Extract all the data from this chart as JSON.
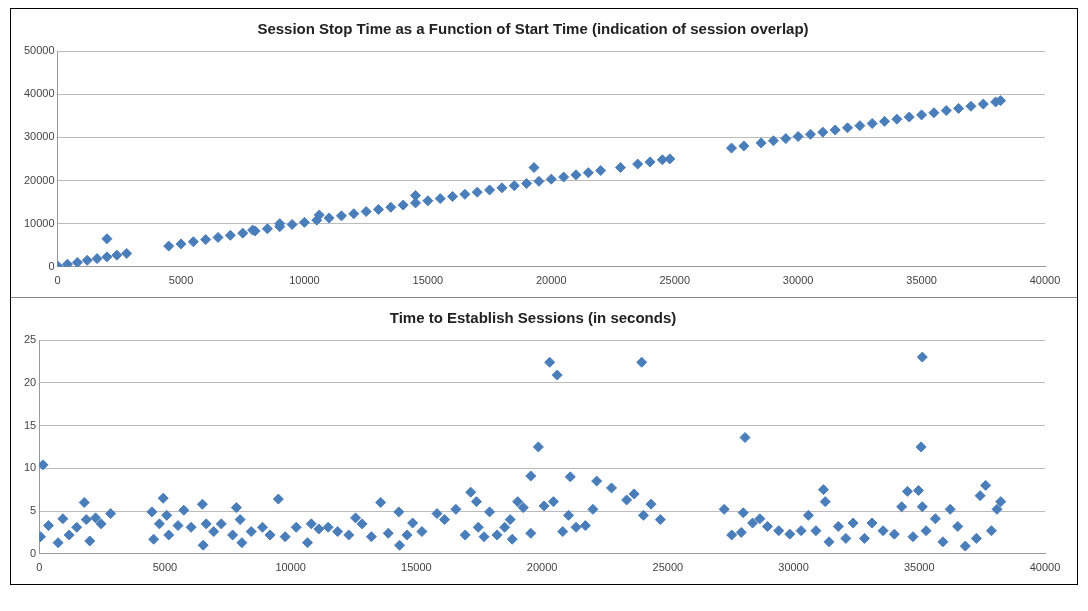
{
  "chart_data": [
    {
      "type": "scatter",
      "title": "Session Stop Time as a Function of Start Time (indication of session overlap)",
      "marker": "diamond",
      "grid": "y",
      "xlim": [
        0,
        40000
      ],
      "xticks": [
        0,
        5000,
        10000,
        15000,
        20000,
        25000,
        30000,
        35000,
        40000
      ],
      "ylim": [
        0,
        50000
      ],
      "yticks": [
        0,
        10000,
        20000,
        30000,
        40000,
        50000
      ],
      "series": [
        {
          "color": "#4a7ebb",
          "x": [
            0,
            400,
            800,
            1200,
            1600,
            2000,
            2000,
            2400,
            2800,
            4500,
            5000,
            5500,
            6000,
            6500,
            7000,
            7500,
            7900,
            8000,
            8500,
            9000,
            9000,
            9500,
            10000,
            10500,
            10600,
            11000,
            11500,
            12000,
            12500,
            13000,
            13500,
            14000,
            14500,
            14500,
            15000,
            15500,
            16000,
            16500,
            17000,
            17500,
            18000,
            18500,
            19000,
            19300,
            19500,
            20000,
            20500,
            21000,
            21500,
            22000,
            22800,
            23500,
            24000,
            24500,
            24800,
            27300,
            27800,
            28500,
            29000,
            29500,
            30000,
            30500,
            31000,
            31500,
            32000,
            32500,
            33000,
            33500,
            34000,
            34500,
            35000,
            35500,
            36000,
            36500,
            37000,
            37500,
            38000,
            38200
          ],
          "values": [
            200,
            600,
            1000,
            1500,
            1900,
            2300,
            6500,
            2700,
            3100,
            4800,
            5300,
            5800,
            6300,
            6800,
            7300,
            7800,
            8500,
            8300,
            8800,
            9300,
            10000,
            9800,
            10300,
            10800,
            12000,
            11300,
            11800,
            12300,
            12800,
            13300,
            13800,
            14300,
            14800,
            16500,
            15300,
            15800,
            16300,
            16800,
            17300,
            17800,
            18300,
            18800,
            19300,
            23000,
            19800,
            20300,
            20800,
            21300,
            21800,
            22300,
            23000,
            23800,
            24300,
            24800,
            25000,
            27500,
            28000,
            28700,
            29200,
            29700,
            30200,
            30700,
            31200,
            31700,
            32200,
            32700,
            33200,
            33700,
            34200,
            34700,
            35200,
            35700,
            36200,
            36700,
            37200,
            37700,
            38200,
            38500
          ]
        }
      ]
    },
    {
      "type": "scatter",
      "title": "Time to Establish Sessions (in seconds)",
      "marker": "diamond",
      "grid": "y",
      "xlim": [
        0,
        40000
      ],
      "xticks": [
        0,
        5000,
        10000,
        15000,
        20000,
        25000,
        30000,
        35000,
        40000
      ],
      "ylim": [
        0,
        25
      ],
      "yticks": [
        0,
        5,
        10,
        15,
        20,
        25
      ],
      "series": [
        {
          "color": "#4a7ebb",
          "x": [
            150,
            50,
            370,
            750,
            940,
            1190,
            1490,
            1790,
            1870,
            2010,
            2240,
            2460,
            2840,
            4480,
            4550,
            4780,
            4930,
            5070,
            5150,
            5520,
            5750,
            6040,
            6490,
            6520,
            6640,
            6940,
            7240,
            7690,
            7840,
            7990,
            8060,
            8430,
            8880,
            9180,
            9510,
            9780,
            10220,
            10670,
            10820,
            11120,
            11490,
            11870,
            12310,
            12580,
            12840,
            13210,
            13580,
            13880,
            14300,
            14330,
            14630,
            14850,
            15220,
            15820,
            16120,
            16570,
            16940,
            17160,
            17390,
            17460,
            17690,
            17910,
            18210,
            18510,
            18730,
            18810,
            19030,
            19250,
            19550,
            19550,
            19850,
            20080,
            20300,
            20450,
            20600,
            20820,
            21050,
            21120,
            21350,
            21720,
            22020,
            22170,
            22760,
            23360,
            23660,
            23960,
            24030,
            24330,
            24700,
            27240,
            27540,
            28000,
            28070,
            27920,
            28370,
            28660,
            28960,
            29410,
            29850,
            30300,
            30590,
            30890,
            31190,
            31260,
            31410,
            31780,
            32080,
            32370,
            32820,
            33120,
            33560,
            34010,
            34300,
            34530,
            34750,
            34970,
            35120,
            35070,
            35120,
            35270,
            35640,
            35940,
            36230,
            36530,
            36830,
            37270,
            37420,
            37640,
            37870,
            38090,
            38240
          ],
          "values": [
            10.4,
            2.0,
            3.3,
            1.3,
            4.1,
            2.2,
            3.1,
            6.0,
            4.0,
            1.5,
            4.2,
            3.5,
            4.7,
            4.9,
            1.7,
            3.5,
            6.5,
            4.5,
            2.2,
            3.3,
            5.1,
            3.1,
            5.8,
            1.0,
            3.5,
            2.6,
            3.5,
            2.2,
            5.4,
            4.0,
            1.3,
            2.6,
            3.1,
            2.2,
            6.4,
            2.0,
            3.1,
            1.3,
            3.5,
            2.9,
            3.1,
            2.6,
            2.2,
            4.2,
            3.5,
            2.0,
            6.0,
            2.4,
            4.9,
            1.0,
            2.2,
            3.6,
            2.6,
            4.7,
            4.0,
            5.2,
            2.2,
            7.2,
            6.1,
            3.1,
            2.0,
            4.9,
            2.2,
            3.1,
            4.0,
            1.7,
            6.1,
            5.4,
            2.4,
            9.1,
            12.5,
            5.6,
            22.4,
            6.1,
            20.9,
            2.6,
            4.5,
            9.0,
            3.1,
            3.3,
            5.2,
            8.5,
            7.7,
            6.3,
            7.0,
            22.4,
            4.5,
            5.8,
            4.0,
            5.2,
            2.2,
            4.8,
            13.6,
            2.5,
            3.6,
            4.1,
            3.2,
            2.7,
            2.3,
            2.7,
            4.5,
            2.7,
            7.5,
            6.1,
            1.4,
            3.2,
            1.8,
            3.6,
            1.8,
            3.6,
            2.7,
            2.3,
            5.5,
            7.3,
            2.0,
            7.4,
            23.0,
            12.5,
            5.5,
            2.7,
            4.1,
            1.4,
            5.2,
            3.2,
            0.9,
            1.8,
            6.8,
            8.0,
            2.7,
            5.2,
            6.1
          ]
        }
      ]
    }
  ]
}
